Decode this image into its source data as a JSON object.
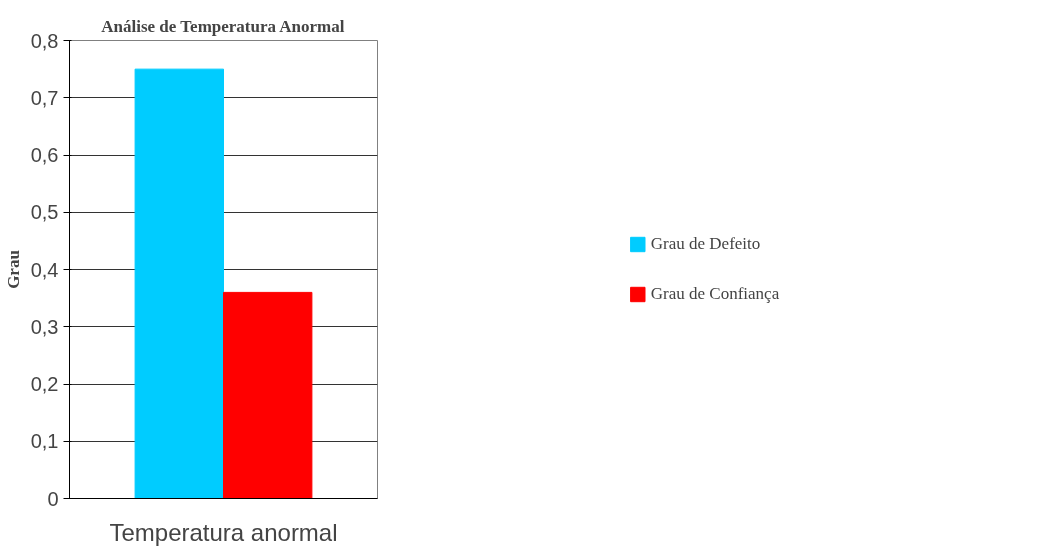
{
  "chart_data": {
    "type": "bar",
    "title": "Análise de Temperatura Anormal",
    "ylabel": "Grau",
    "categories": [
      "Temperatura anormal"
    ],
    "series": [
      {
        "name": "Grau de Defeito",
        "color": "#00ccff",
        "values": [
          0.75
        ]
      },
      {
        "name": "Grau de Confiança",
        "color": "#ff0000",
        "values": [
          0.36
        ]
      }
    ],
    "ylim": [
      0,
      0.8
    ],
    "yticks": [
      {
        "value": 0,
        "label": "0"
      },
      {
        "value": 0.1,
        "label": "0,1"
      },
      {
        "value": 0.2,
        "label": "0,2"
      },
      {
        "value": 0.3,
        "label": "0,3"
      },
      {
        "value": 0.4,
        "label": "0,4"
      },
      {
        "value": 0.5,
        "label": "0,5"
      },
      {
        "value": 0.6,
        "label": "0,6"
      },
      {
        "value": 0.7,
        "label": "0,7"
      },
      {
        "value": 0.8,
        "label": "0,8"
      }
    ],
    "grid": "y",
    "legend": "right"
  }
}
